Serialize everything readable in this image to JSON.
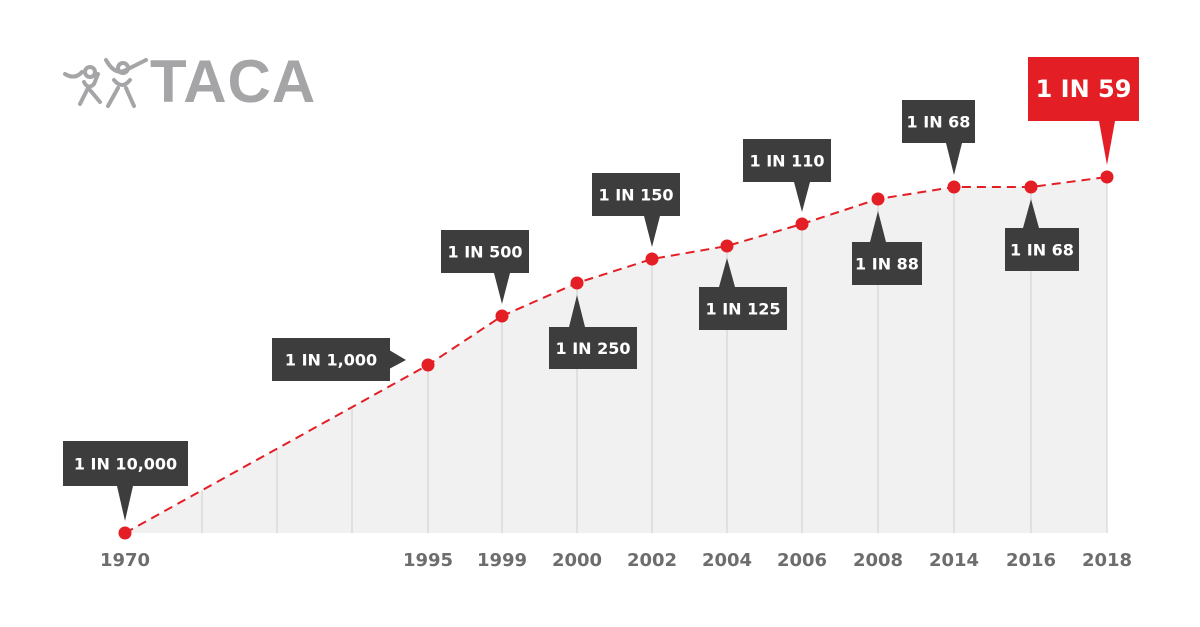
{
  "logo": {
    "text": "TACA"
  },
  "chart_data": {
    "type": "line",
    "categories": [
      "1970",
      "1995",
      "1999",
      "2000",
      "2002",
      "2004",
      "2006",
      "2008",
      "2014",
      "2016",
      "2018"
    ],
    "values_one_in_n": [
      10000,
      1000,
      500,
      250,
      150,
      125,
      110,
      88,
      68,
      68,
      59
    ],
    "data_labels": [
      "1 IN 10,000",
      "1 IN 1,000",
      "1 IN 500",
      "1 IN 250",
      "1 IN 150",
      "1 IN 125",
      "1 IN 110",
      "1 IN 88",
      "1 IN 68",
      "1 IN 68",
      "1 IN 59"
    ],
    "title": "",
    "xlabel": "",
    "ylabel": "",
    "grid": "vertical",
    "colors": {
      "line": "#e31e24",
      "label_box": "#3d3d3e",
      "highlight_box": "#e31e24",
      "area": "#f1f1f1",
      "tick_text": "#6d6d6f"
    }
  }
}
